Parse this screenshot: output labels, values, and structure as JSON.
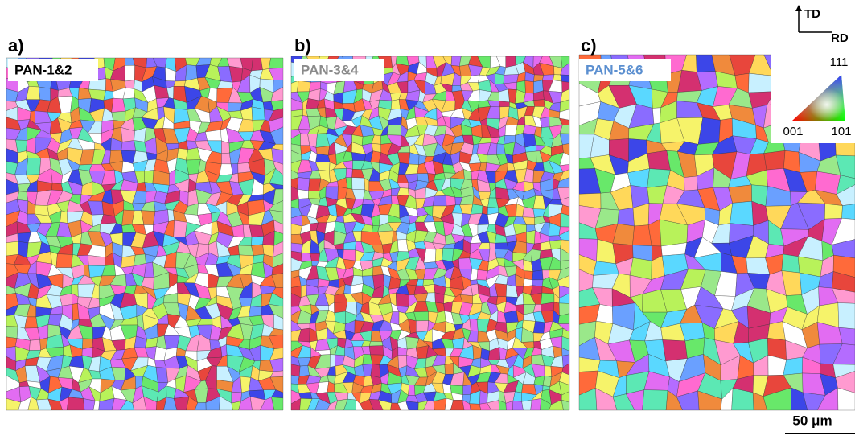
{
  "panels": [
    {
      "letter": "a)",
      "sample": "PAN-1&2"
    },
    {
      "letter": "b)",
      "sample": "PAN-3&4"
    },
    {
      "letter": "c)",
      "sample": "PAN-5&6"
    }
  ],
  "legend": {
    "td": "TD",
    "rd": "RD",
    "pole_111": "111",
    "pole_001": "001",
    "pole_101": "101"
  },
  "scale_bar": "50 μm"
}
